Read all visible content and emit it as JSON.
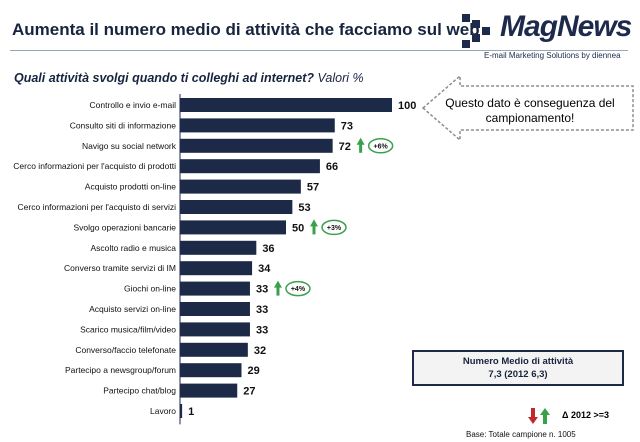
{
  "header": {
    "title": "Aumenta il numero medio di attività che facciamo sul web",
    "subtitle_question": "Quali attività svolgi quando ti colleghi ad internet?",
    "subtitle_unit": "Valori %"
  },
  "logo": {
    "name": "MagNews",
    "tagline": "E-mail Marketing Solutions by diennea"
  },
  "callout": {
    "text": "Questo dato è conseguenza del campionamento!"
  },
  "summary_box": {
    "line1": "Numero Medio di attività",
    "line2": "7,3 (2012 6,3)"
  },
  "legend": {
    "text": "Δ 2012 >=3",
    "colors": {
      "down": "#c0282d",
      "up": "#39a14a"
    }
  },
  "footer": {
    "base": "Base: Totale campione n. 1005"
  },
  "chart_data": {
    "type": "bar",
    "orientation": "horizontal",
    "categories": [
      "Controllo e invio e-mail",
      "Consulto siti di informazione",
      "Navigo su social network",
      "Cerco informazioni per l'acquisto di prodotti",
      "Acquisto prodotti on-line",
      "Cerco informazioni per l'acquisto di servizi",
      "Svolgo operazioni bancarie",
      "Ascolto radio e musica",
      "Converso tramite servizi di IM",
      "Giochi on-line",
      "Acquisto servizi on-line",
      "Scarico musica/film/video",
      "Converso/faccio telefonate",
      "Partecipo a newsgroup/forum",
      "Partecipo chat/blog",
      "Lavoro"
    ],
    "values": [
      100,
      73,
      72,
      66,
      57,
      53,
      50,
      36,
      34,
      33,
      33,
      33,
      32,
      29,
      27,
      1
    ],
    "deltas": [
      null,
      null,
      "+6%",
      null,
      null,
      null,
      "+3%",
      null,
      null,
      "+4%",
      null,
      null,
      null,
      null,
      null,
      null
    ],
    "xlim": [
      0,
      100
    ],
    "bar_color": "#1c2a47",
    "up_color": "#39a14a"
  }
}
